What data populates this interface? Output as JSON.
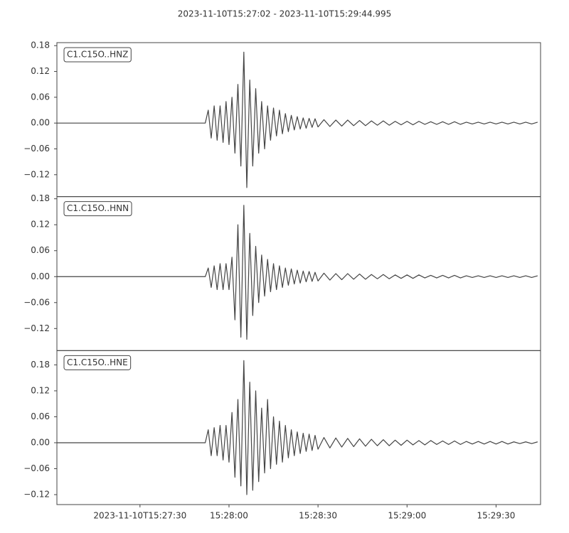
{
  "chart_data": [
    {
      "type": "line",
      "title": "2023-11-10T15:27:02  -  2023-11-10T15:29:44.995",
      "x": [
        "15:27:02",
        "15:27:52",
        "15:27:53",
        "15:27:54",
        "15:27:55",
        "15:27:56",
        "15:27:57",
        "15:27:58",
        "15:27:59",
        "15:28:00",
        "15:28:01",
        "15:28:02",
        "15:28:03",
        "15:28:04",
        "15:28:05",
        "15:28:06",
        "15:28:07",
        "15:28:08",
        "15:28:09",
        "15:28:10",
        "15:28:11",
        "15:28:12",
        "15:28:13",
        "15:28:14",
        "15:28:15",
        "15:28:16",
        "15:28:17",
        "15:28:18",
        "15:28:19",
        "15:28:20",
        "15:28:21",
        "15:28:22",
        "15:28:23",
        "15:28:24",
        "15:28:25",
        "15:28:26",
        "15:28:27",
        "15:28:28",
        "15:28:29",
        "15:28:30",
        "15:28:32",
        "15:28:34",
        "15:28:36",
        "15:28:38",
        "15:28:40",
        "15:28:42",
        "15:28:44",
        "15:28:46",
        "15:28:48",
        "15:28:50",
        "15:28:52",
        "15:28:54",
        "15:28:56",
        "15:28:58",
        "15:29:00",
        "15:29:02",
        "15:29:04",
        "15:29:06",
        "15:29:08",
        "15:29:10",
        "15:29:12",
        "15:29:14",
        "15:29:16",
        "15:29:18",
        "15:29:20",
        "15:29:22",
        "15:29:24",
        "15:29:26",
        "15:29:28",
        "15:29:30",
        "15:29:32",
        "15:29:34",
        "15:29:36",
        "15:29:38",
        "15:29:40",
        "15:29:42",
        "15:29:44"
      ],
      "series": [
        {
          "name": "C1.C15O..HNZ",
          "color": "#444444",
          "values": [
            0,
            0,
            0.03,
            -0.035,
            0.04,
            -0.04,
            0.04,
            -0.045,
            0.05,
            -0.05,
            0.06,
            -0.07,
            0.09,
            -0.1,
            0.165,
            -0.15,
            0.1,
            -0.1,
            0.08,
            -0.07,
            0.05,
            -0.06,
            0.04,
            -0.04,
            0.035,
            -0.03,
            0.03,
            -0.025,
            0.022,
            -0.02,
            0.018,
            -0.016,
            0.015,
            -0.014,
            0.012,
            -0.012,
            0.011,
            -0.01,
            0.01,
            -0.009,
            0.008,
            -0.008,
            0.007,
            -0.007,
            0.007,
            -0.006,
            0.006,
            -0.006,
            0.005,
            -0.005,
            0.005,
            -0.005,
            0.004,
            -0.004,
            0.004,
            -0.004,
            0.004,
            -0.003,
            0.003,
            -0.003,
            0.003,
            -0.003,
            0.003,
            -0.003,
            0.002,
            -0.002,
            0.002,
            -0.002,
            0.002,
            -0.002,
            0.002,
            -0.002,
            0.002,
            -0.002,
            0.002,
            -0.002,
            0.002
          ]
        }
      ],
      "xlim": [
        "15:27:02",
        "15:29:44.995"
      ],
      "ylim": [
        -0.171,
        0.187
      ],
      "yticks": [
        {
          "value": -0.12,
          "label": "−0.12"
        },
        {
          "value": -0.06,
          "label": "−0.06"
        },
        {
          "value": 0,
          "label": "0.00"
        },
        0.06,
        0.12,
        0.18
      ]
    },
    {
      "type": "line",
      "x": [
        "15:27:02",
        "15:27:52",
        "15:27:53",
        "15:27:54",
        "15:27:55",
        "15:27:56",
        "15:27:57",
        "15:27:58",
        "15:27:59",
        "15:28:00",
        "15:28:01",
        "15:28:02",
        "15:28:03",
        "15:28:04",
        "15:28:05",
        "15:28:06",
        "15:28:07",
        "15:28:08",
        "15:28:09",
        "15:28:10",
        "15:28:11",
        "15:28:12",
        "15:28:13",
        "15:28:14",
        "15:28:15",
        "15:28:16",
        "15:28:17",
        "15:28:18",
        "15:28:19",
        "15:28:20",
        "15:28:21",
        "15:28:22",
        "15:28:23",
        "15:28:24",
        "15:28:25",
        "15:28:26",
        "15:28:27",
        "15:28:28",
        "15:28:29",
        "15:28:30",
        "15:28:32",
        "15:28:34",
        "15:28:36",
        "15:28:38",
        "15:28:40",
        "15:28:42",
        "15:28:44",
        "15:28:46",
        "15:28:48",
        "15:28:50",
        "15:28:52",
        "15:28:54",
        "15:28:56",
        "15:28:58",
        "15:29:00",
        "15:29:02",
        "15:29:04",
        "15:29:06",
        "15:29:08",
        "15:29:10",
        "15:29:12",
        "15:29:14",
        "15:29:16",
        "15:29:18",
        "15:29:20",
        "15:29:22",
        "15:29:24",
        "15:29:26",
        "15:29:28",
        "15:29:30",
        "15:29:32",
        "15:29:34",
        "15:29:36",
        "15:29:38",
        "15:29:40",
        "15:29:42",
        "15:29:44"
      ],
      "series": [
        {
          "name": "C1.C15O..HNN",
          "color": "#444444",
          "values": [
            0,
            0,
            0.02,
            -0.025,
            0.025,
            -0.03,
            0.03,
            -0.03,
            0.03,
            -0.03,
            0.045,
            -0.1,
            0.12,
            -0.14,
            0.165,
            -0.145,
            0.1,
            -0.09,
            0.07,
            -0.06,
            0.05,
            -0.045,
            0.04,
            -0.035,
            0.03,
            -0.03,
            0.025,
            -0.025,
            0.02,
            -0.02,
            0.018,
            -0.017,
            0.015,
            -0.015,
            0.013,
            -0.012,
            0.012,
            -0.011,
            0.01,
            -0.01,
            0.008,
            -0.008,
            0.007,
            -0.007,
            0.007,
            -0.006,
            0.006,
            -0.006,
            0.005,
            -0.005,
            0.005,
            -0.005,
            0.004,
            -0.004,
            0.004,
            -0.004,
            0.004,
            -0.003,
            0.003,
            -0.003,
            0.003,
            -0.003,
            0.003,
            -0.003,
            0.002,
            -0.002,
            0.002,
            -0.002,
            0.002,
            -0.002,
            0.002,
            -0.002,
            0.002,
            -0.002,
            0.002,
            -0.002,
            0.002
          ]
        }
      ],
      "xlim": [
        "15:27:02",
        "15:29:44.995"
      ],
      "ylim": [
        -0.171,
        0.185
      ],
      "yticks": [
        {
          "value": -0.12,
          "label": "−0.12"
        },
        {
          "value": -0.06,
          "label": "−0.06"
        },
        {
          "value": 0,
          "label": "0.00"
        },
        0.06,
        0.12,
        0.18
      ]
    },
    {
      "type": "line",
      "x": [
        "15:27:02",
        "15:27:52",
        "15:27:53",
        "15:27:54",
        "15:27:55",
        "15:27:56",
        "15:27:57",
        "15:27:58",
        "15:27:59",
        "15:28:00",
        "15:28:01",
        "15:28:02",
        "15:28:03",
        "15:28:04",
        "15:28:05",
        "15:28:06",
        "15:28:07",
        "15:28:08",
        "15:28:09",
        "15:28:10",
        "15:28:11",
        "15:28:12",
        "15:28:13",
        "15:28:14",
        "15:28:15",
        "15:28:16",
        "15:28:17",
        "15:28:18",
        "15:28:19",
        "15:28:20",
        "15:28:21",
        "15:28:22",
        "15:28:23",
        "15:28:24",
        "15:28:25",
        "15:28:26",
        "15:28:27",
        "15:28:28",
        "15:28:29",
        "15:28:30",
        "15:28:32",
        "15:28:34",
        "15:28:36",
        "15:28:38",
        "15:28:40",
        "15:28:42",
        "15:28:44",
        "15:28:46",
        "15:28:48",
        "15:28:50",
        "15:28:52",
        "15:28:54",
        "15:28:56",
        "15:28:58",
        "15:29:00",
        "15:29:02",
        "15:29:04",
        "15:29:06",
        "15:29:08",
        "15:29:10",
        "15:29:12",
        "15:29:14",
        "15:29:16",
        "15:29:18",
        "15:29:20",
        "15:29:22",
        "15:29:24",
        "15:29:26",
        "15:29:28",
        "15:29:30",
        "15:29:32",
        "15:29:34",
        "15:29:36",
        "15:29:38",
        "15:29:40",
        "15:29:42",
        "15:29:44"
      ],
      "series": [
        {
          "name": "C1.C15O..HNE",
          "color": "#444444",
          "values": [
            0,
            0,
            0.03,
            -0.03,
            0.035,
            -0.03,
            0.04,
            -0.04,
            0.04,
            -0.045,
            0.07,
            -0.08,
            0.1,
            -0.1,
            0.19,
            -0.12,
            0.14,
            -0.11,
            0.12,
            -0.09,
            0.08,
            -0.07,
            0.1,
            -0.06,
            0.06,
            -0.05,
            0.05,
            -0.045,
            0.04,
            -0.035,
            0.03,
            -0.03,
            0.025,
            -0.025,
            0.022,
            -0.02,
            0.02,
            -0.018,
            0.017,
            -0.015,
            0.012,
            -0.012,
            0.011,
            -0.01,
            0.01,
            -0.009,
            0.009,
            -0.008,
            0.008,
            -0.007,
            0.007,
            -0.007,
            0.006,
            -0.006,
            0.006,
            -0.005,
            0.005,
            -0.005,
            0.005,
            -0.004,
            0.004,
            -0.004,
            0.004,
            -0.004,
            0.003,
            -0.003,
            0.003,
            -0.003,
            0.003,
            -0.003,
            0.003,
            -0.003,
            0.002,
            -0.002,
            0.002,
            -0.002,
            0.002
          ]
        }
      ],
      "xlim": [
        "15:27:02",
        "15:29:44.995"
      ],
      "ylim": [
        -0.143,
        0.213
      ],
      "yticks": [
        {
          "value": -0.12,
          "label": "−0.12"
        },
        {
          "value": -0.06,
          "label": "−0.06"
        },
        {
          "value": 0,
          "label": "0.00"
        },
        0.06,
        0.12,
        0.18
      ],
      "xticks": [
        {
          "value": "15:27:30",
          "label": "2023-11-10T15:27:30"
        },
        "15:28:00",
        "15:28:30",
        "15:29:00",
        "15:29:30"
      ]
    }
  ]
}
